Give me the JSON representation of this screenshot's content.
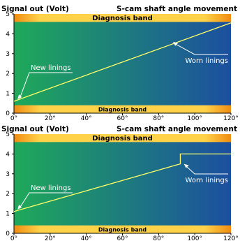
{
  "colors": {
    "bg_left": "#1fa95a",
    "bg_right": "#1c4fa0",
    "band_center": "#ffd24a",
    "band_edge": "#f08c10",
    "line": "#ffff66",
    "annotation": "#ffffff"
  },
  "chart_data": [
    {
      "type": "line",
      "ylabel": "Signal out (Volt)",
      "xlabel": "S-cam shaft angle movement",
      "xlim": [
        0,
        120
      ],
      "ylim": [
        0,
        5
      ],
      "x_ticks": [
        "0°",
        "20°",
        "40°",
        "60°",
        "80°",
        "100°",
        "120°"
      ],
      "y_ticks": [
        "0",
        "1",
        "2",
        "3",
        "4",
        "5"
      ],
      "bands": [
        {
          "label": "Diagnosis band",
          "y0": 4.6,
          "y1": 5.0
        },
        {
          "label": "Diagnosis band",
          "y0": 0.0,
          "y1": 0.4
        }
      ],
      "series": [
        {
          "x": [
            0,
            120
          ],
          "y": [
            0.6,
            4.55
          ]
        }
      ],
      "annotations": [
        {
          "text": "New linings",
          "x": 2,
          "y": 0.7
        },
        {
          "text": "Worn linings",
          "x": 88,
          "y": 3.6
        }
      ]
    },
    {
      "type": "line",
      "ylabel": "Signal out (Volt)",
      "xlabel": "S-cam shaft angle movement",
      "xlim": [
        0,
        120
      ],
      "ylim": [
        0,
        5
      ],
      "x_ticks": [
        "0°",
        "20°",
        "40°",
        "60°",
        "80°",
        "100°",
        "120°"
      ],
      "y_ticks": [
        "0",
        "1",
        "2",
        "3",
        "4",
        "5"
      ],
      "bands": [
        {
          "label": "Diagnosis band",
          "y0": 4.6,
          "y1": 5.0
        },
        {
          "label": "Diagnosis band",
          "y0": 0.0,
          "y1": 0.4
        }
      ],
      "series": [
        {
          "x": [
            0,
            92,
            92,
            120
          ],
          "y": [
            1.1,
            3.5,
            4.0,
            4.0
          ]
        }
      ],
      "annotations": [
        {
          "text": "New linings",
          "x": 2,
          "y": 1.2
        },
        {
          "text": "Worn linings",
          "x": 94,
          "y": 3.5
        }
      ]
    }
  ]
}
